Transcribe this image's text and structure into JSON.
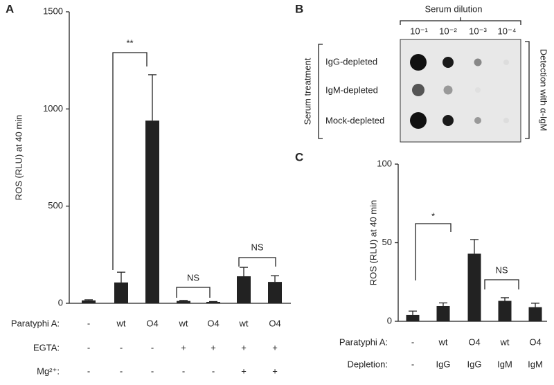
{
  "chart_data": [
    {
      "type": "bar",
      "panel": "A",
      "y_label": "ROS (RLU) at 40 min",
      "values": [
        15,
        107,
        940,
        12,
        7,
        139,
        110
      ],
      "errors": [
        3,
        53,
        236,
        3,
        2,
        46,
        32
      ],
      "color": "#222222",
      "ylim": [
        0,
        1500
      ],
      "yticks": [
        0,
        500,
        1000,
        1500
      ],
      "x_label_rows": [
        {
          "label": "Paratyphi A:",
          "labels": [
            "-",
            "wt",
            "O4",
            "wt",
            "O4",
            "wt",
            "O4"
          ]
        },
        {
          "label": "EGTA:",
          "labels": [
            "-",
            "-",
            "-",
            "+",
            "+",
            "+",
            "+"
          ]
        },
        {
          "label": "Mg²⁺:",
          "labels": [
            "-",
            "-",
            "-",
            "-",
            "-",
            "+",
            "+"
          ]
        }
      ],
      "annotations": [
        "**",
        "NS",
        "NS"
      ]
    },
    {
      "type": "bar",
      "panel": "C",
      "y_label": "ROS (RLU) at 40 min",
      "values": [
        4,
        9.7,
        43,
        13,
        9
      ],
      "errors": [
        2.5,
        2,
        9,
        2,
        2.5
      ],
      "color": "#222222",
      "ylim": [
        0,
        100
      ],
      "yticks": [
        0,
        50,
        100
      ],
      "x_label_rows": [
        {
          "label": "Paratyphi A:",
          "labels": [
            "-",
            "wt",
            "O4",
            "wt",
            "O4"
          ]
        },
        {
          "label": "Depletion:",
          "labels": [
            "-",
            "IgG",
            "IgG",
            "IgM",
            "IgM"
          ]
        }
      ],
      "annotations": [
        "*",
        "NS"
      ]
    }
  ],
  "dot_blot": {
    "panel": "B",
    "title": "Serum dilution",
    "columns": [
      "10⁻¹",
      "10⁻²",
      "10⁻³",
      "10⁻⁴"
    ],
    "rows": [
      "IgG-depleted",
      "IgM-depleted",
      "Mock-depleted"
    ],
    "row_group": "Serum treatment",
    "detection": "Detection with α-IgM"
  }
}
